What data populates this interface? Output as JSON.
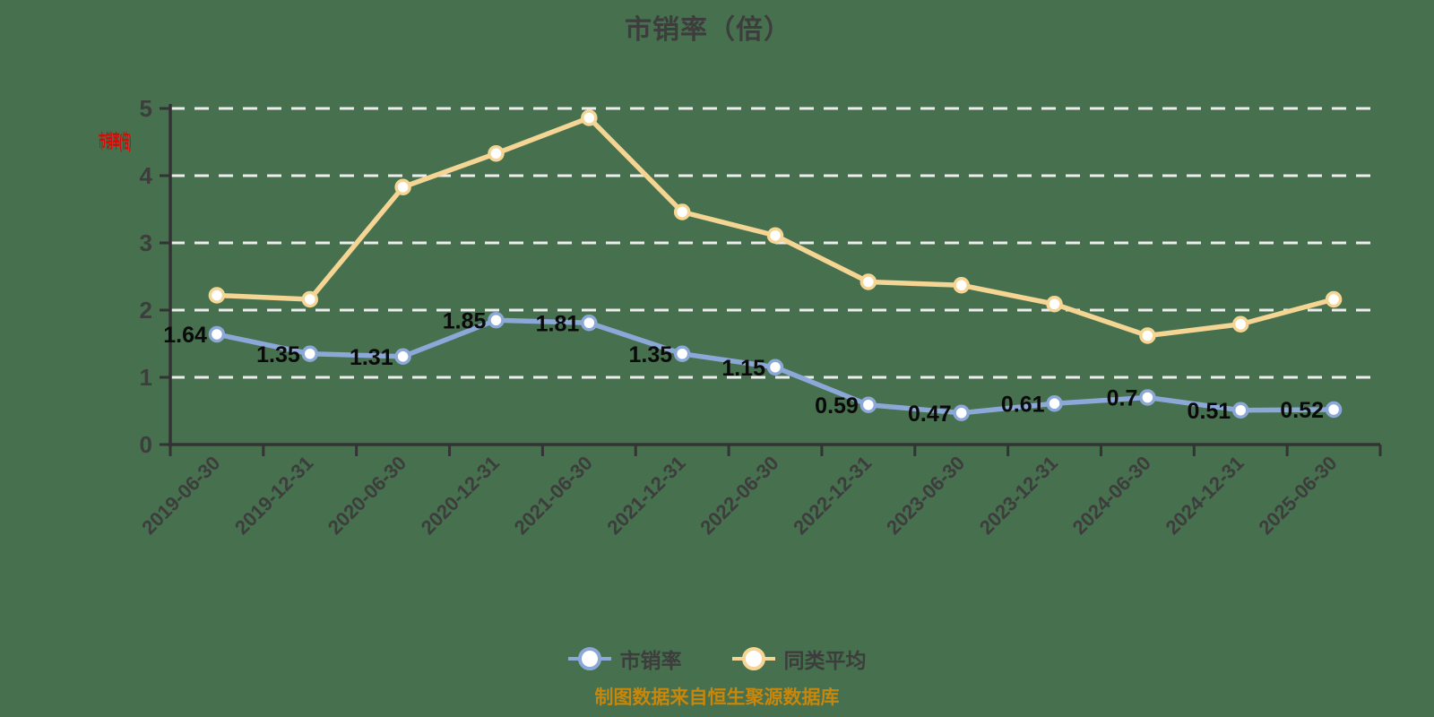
{
  "header": {
    "title": "市销率（倍）"
  },
  "red_axis_label": "市销率(倍)",
  "footer": {
    "text": "制图数据来自恒生聚源数据库"
  },
  "colors": {
    "background": "#46704E",
    "axis": "#333333",
    "gridline": "#ededed",
    "tick_label": "#3d3d3d",
    "value_label": "#0a0a0a",
    "series_ps": "#8CA8D8",
    "series_avg": "#F5D593",
    "footer_text": "#C8860A",
    "watermark_red": "#e60000"
  },
  "chart_data": {
    "type": "line",
    "title": "市销率（倍）",
    "categories": [
      "2019-06-30",
      "2019-12-31",
      "2020-06-30",
      "2020-12-31",
      "2021-06-30",
      "2021-12-31",
      "2022-06-30",
      "2022-12-31",
      "2023-06-30",
      "2023-12-31",
      "2024-06-30",
      "2024-12-31",
      "2025-06-30"
    ],
    "series": [
      {
        "name": "市销率",
        "color": "#8CA8D8",
        "show_labels": true,
        "values": [
          1.64,
          1.35,
          1.31,
          1.85,
          1.81,
          1.35,
          1.15,
          0.59,
          0.47,
          0.61,
          0.7,
          0.51,
          0.52
        ]
      },
      {
        "name": "同类平均",
        "color": "#F5D593",
        "show_labels": false,
        "values": [
          2.22,
          2.16,
          3.83,
          4.33,
          4.86,
          3.46,
          3.11,
          2.42,
          2.37,
          2.09,
          1.62,
          1.79,
          2.16
        ]
      }
    ],
    "ylim": [
      0,
      5
    ],
    "yticks": [
      0,
      1,
      2,
      3,
      4,
      5
    ],
    "grid": "horizontal-dashed-white",
    "legend_position": "bottom",
    "x_label_rotation_deg": 45
  }
}
